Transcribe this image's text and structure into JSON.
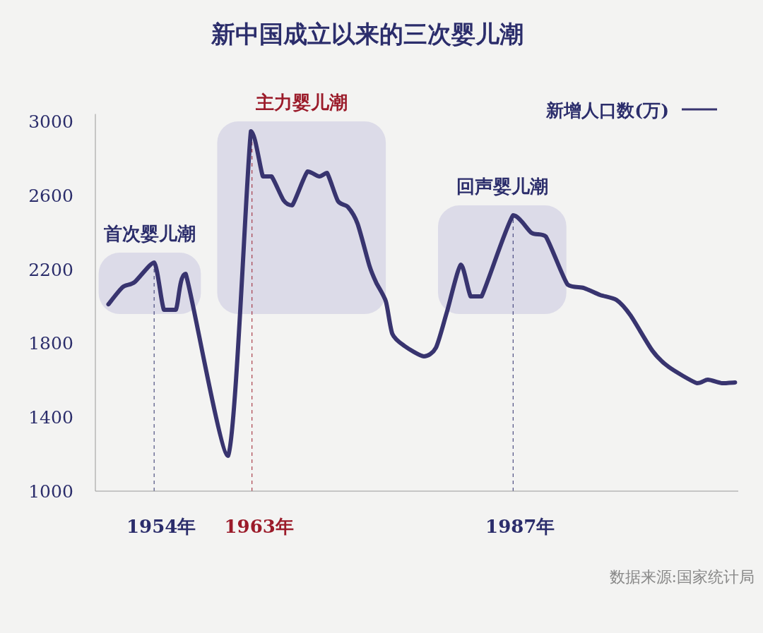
{
  "chart_data": {
    "type": "line",
    "title": "新中国成立以来的三次婴儿潮",
    "x": [
      1949.8,
      1951.1,
      1952.2,
      1954.0,
      1954.9,
      1956.0,
      1956.9,
      1960.8,
      1962.9,
      1964.0,
      1964.8,
      1965.9,
      1966.7,
      1968.1,
      1969.2,
      1969.9,
      1970.9,
      1971.8,
      1972.7,
      1973.8,
      1974.4,
      1975.3,
      1975.9,
      1977.0,
      1978.8,
      1979.9,
      1980.9,
      1982.2,
      1983.1,
      1984.1,
      1987.0,
      1988.7,
      1990.0,
      1992.0,
      1993.5,
      1995.0,
      1996.5,
      1997.8,
      1999.8,
      2001.3,
      2003.9,
      2004.9,
      2006.2,
      2007.4
    ],
    "series": [
      {
        "name": "新增人口数(万)",
        "color": "#38346f",
        "values": [
          2011,
          2103,
          2130,
          2237,
          1981,
          1981,
          2176,
          1191,
          2947,
          2702,
          2702,
          2573,
          2546,
          2729,
          2702,
          2721,
          2569,
          2538,
          2447,
          2218,
          2130,
          2027,
          1851,
          1786,
          1729,
          1775,
          1966,
          2225,
          2053,
          2053,
          2492,
          2397,
          2378,
          2118,
          2099,
          2061,
          2034,
          1950,
          1760,
          1672,
          1584,
          1603,
          1584,
          1588
        ]
      }
    ],
    "xlim": [
      1948.6,
      2007.7
    ],
    "ylim": [
      1000,
      3040
    ],
    "yticks": [
      1000,
      1400,
      1800,
      2200,
      2600,
      3000
    ],
    "tick_labels": "y",
    "legend": "top right",
    "marker": "none",
    "line_style": "solid",
    "grid": false,
    "ref_lines": [
      {
        "axis": "x",
        "value": 1954,
        "label": "1954年",
        "color": "#2b2d6b",
        "line_style": "dashed"
      },
      {
        "axis": "x",
        "value": 1963,
        "label": "1963年",
        "color": "#9b1b2a",
        "line_style": "dashed"
      },
      {
        "axis": "x",
        "value": 1987,
        "label": "1987年",
        "color": "#2b2d6b",
        "line_style": "dashed"
      }
    ],
    "bands": [
      {
        "axis": "x",
        "from": 1948.9,
        "to": 1958.3,
        "label": "首次婴儿潮",
        "color": "#dcdbe8"
      },
      {
        "axis": "x",
        "from": 1959.8,
        "to": 1975.3,
        "label": "主力婴儿潮",
        "color": "#dcdbe8"
      },
      {
        "axis": "x",
        "from": 1980.1,
        "to": 1991.9,
        "label": "回声婴儿潮",
        "color": "#dcdbe8"
      }
    ],
    "annotations": [
      "数据来源:国家统计局"
    ]
  }
}
